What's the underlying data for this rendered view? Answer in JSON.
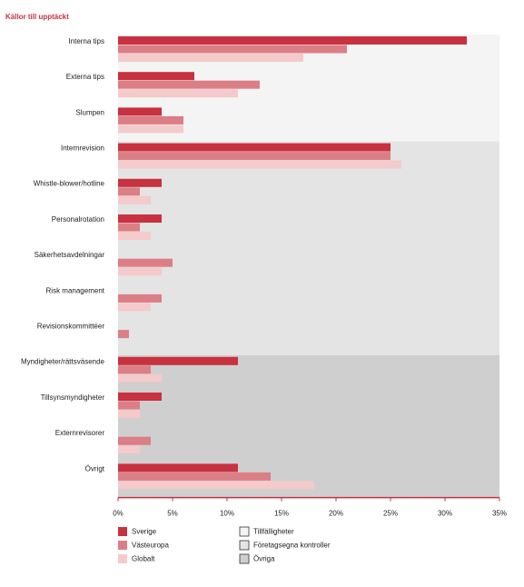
{
  "chart_data": {
    "type": "hbar",
    "title": "Källor till upptäckt",
    "groups": [
      {
        "name": "Tillfälligheter",
        "color": "#f4f4f4",
        "categories": [
          "Interna tips",
          "Externa tips",
          "Slumpen"
        ]
      },
      {
        "name": "Företagsegna kontroller",
        "color": "#e4e4e4",
        "categories": [
          "Internrevision",
          "Whistle-blower/hotline",
          "Personalrotation",
          "Säkerhetsavdelningar",
          "Risk management",
          "Revisionskommittéer"
        ]
      },
      {
        "name": "Övriga",
        "color": "#cfcfcf",
        "categories": [
          "Myndigheter/rättsväsende",
          "Tillsynsmyndigheter",
          "Externrevisorer",
          "Övrigt"
        ]
      }
    ],
    "series": [
      {
        "name": "Sverige",
        "color": "#c8313f",
        "values": [
          32,
          7,
          4,
          25,
          4,
          4,
          0,
          0,
          0,
          11,
          4,
          0,
          11
        ]
      },
      {
        "name": "Västeuropa",
        "color": "#dc7e85",
        "values": [
          21,
          13,
          6,
          25,
          2,
          2,
          5,
          4,
          1,
          3,
          2,
          3,
          14
        ]
      },
      {
        "name": "Globalt",
        "color": "#f4cacb",
        "values": [
          17,
          11,
          6,
          26,
          3,
          3,
          4,
          3,
          0,
          4,
          2,
          2,
          18
        ]
      }
    ],
    "xlim": [
      0,
      35
    ],
    "xticks": [
      {
        "value": 0,
        "label": "0%"
      },
      {
        "value": 5,
        "label": "5%"
      },
      {
        "value": 10,
        "label": "10%"
      },
      {
        "value": 15,
        "label": "15%"
      },
      {
        "value": 20,
        "label": "20%"
      },
      {
        "value": 25,
        "label": "25%"
      },
      {
        "value": 30,
        "label": "30%"
      },
      {
        "value": 35,
        "label": "35%"
      }
    ],
    "axis_color": "#c8313f"
  }
}
